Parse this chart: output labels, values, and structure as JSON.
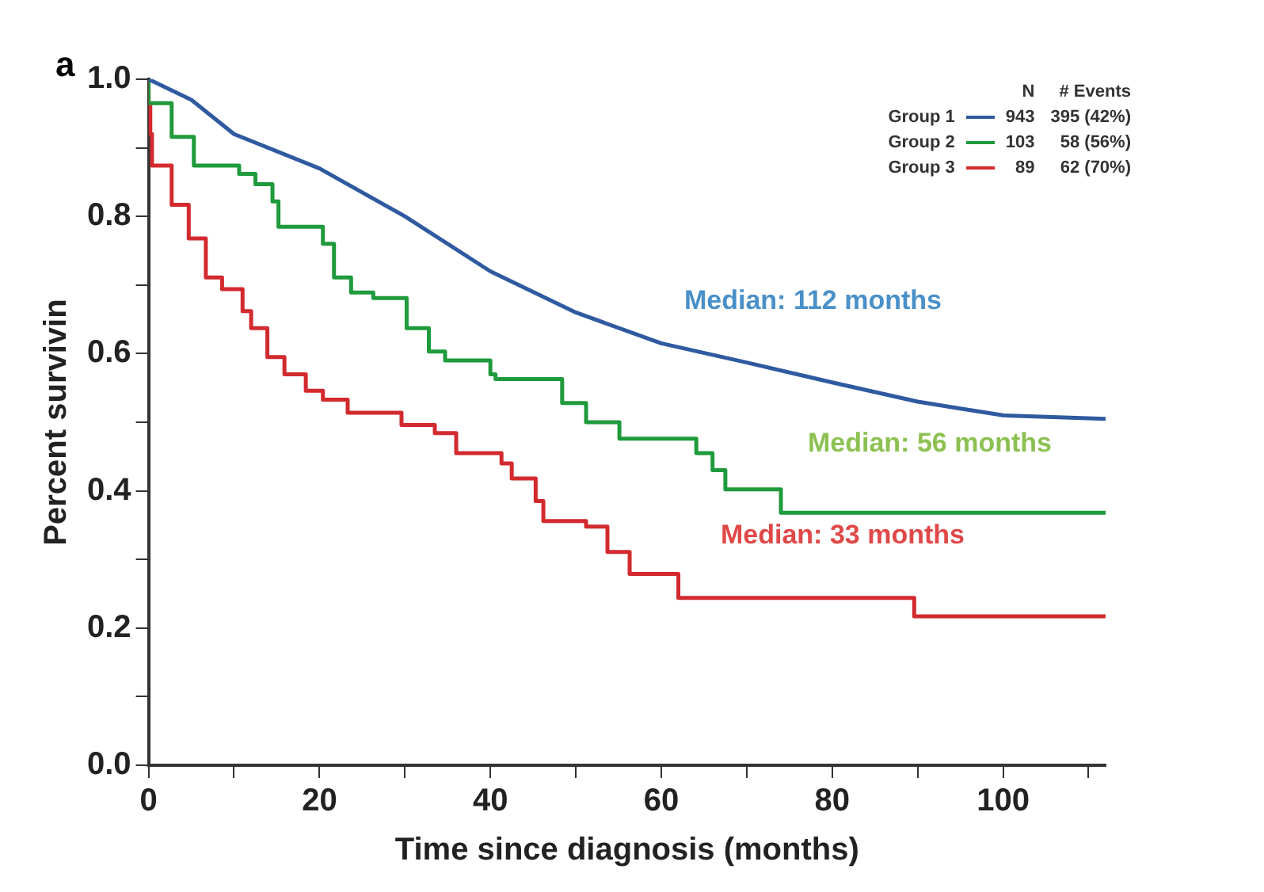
{
  "chart_data": {
    "type": "step",
    "xlabel": "Time since diagnosis (months)",
    "ylabel": "Percent survivin",
    "xlim": [
      0,
      112
    ],
    "xticks": [
      0,
      {
        "value": 10,
        "label": null
      },
      20,
      {
        "value": 30,
        "label": null
      },
      40,
      {
        "value": 50,
        "label": null
      },
      60,
      {
        "value": 70,
        "label": null
      },
      80,
      {
        "value": 90,
        "label": null
      },
      100,
      {
        "value": 110,
        "label": null
      }
    ],
    "ylim": [
      0,
      1
    ],
    "yticks": [
      {
        "value": 0,
        "label": "0.0"
      },
      {
        "value": 0.1,
        "label": null
      },
      {
        "value": 0.2,
        "label": "0.2"
      },
      {
        "value": 0.3,
        "label": null
      },
      {
        "value": 0.4,
        "label": "0.4"
      },
      {
        "value": 0.5,
        "label": null
      },
      {
        "value": 0.6,
        "label": "0.6"
      },
      {
        "value": 0.7,
        "label": null
      },
      {
        "value": 0.8,
        "label": "0.8"
      },
      {
        "value": 0.9,
        "label": null
      },
      {
        "value": 1,
        "label": "1.0"
      }
    ],
    "grid": false,
    "legend": "top right",
    "series": [
      {
        "name": "Group 1",
        "type": "line",
        "color": "#2f5aa0",
        "x": [
          0,
          5,
          10,
          20,
          30,
          40,
          50,
          60,
          70,
          80,
          90,
          95,
          100,
          112
        ],
        "values": [
          1.0,
          0.97,
          0.92,
          0.87,
          0.8,
          0.72,
          0.66,
          0.615,
          0.587,
          0.558,
          0.53,
          0.52,
          0.51,
          0.505
        ]
      },
      {
        "name": "Group 2",
        "color": "#1f9a3c",
        "x": [
          0,
          2.7,
          5.3,
          10.6,
          12.5,
          14.5,
          15.2,
          20.4,
          21.7,
          23.7,
          26.3,
          30.2,
          32.8,
          34.7,
          40,
          40.6,
          48.4,
          51.2,
          55.1,
          64.1,
          66,
          67.5,
          74,
          93.3,
          112
        ],
        "values": [
          1.0,
          0.965,
          0.916,
          0.874,
          0.862,
          0.847,
          0.822,
          0.785,
          0.76,
          0.711,
          0.689,
          0.681,
          0.637,
          0.603,
          0.59,
          0.57,
          0.563,
          0.528,
          0.5,
          0.476,
          0.455,
          0.43,
          0.402,
          0.368,
          0.368
        ]
      },
      {
        "name": "Group 3",
        "color": "#d22a2f",
        "x": [
          0,
          0.2,
          0.4,
          2.7,
          4.7,
          6.7,
          8.6,
          11,
          12,
          13.9,
          15.9,
          18.4,
          20.4,
          23.3,
          29.6,
          33.5,
          36,
          41.3,
          42.5,
          45.3,
          46.2,
          51.2,
          53.7,
          56.3,
          62,
          89.6,
          93.5,
          112
        ],
        "values": [
          1.0,
          0.965,
          0.92,
          0.874,
          0.817,
          0.768,
          0.711,
          0.694,
          0.662,
          0.637,
          0.595,
          0.57,
          0.546,
          0.533,
          0.514,
          0.496,
          0.484,
          0.455,
          0.44,
          0.418,
          0.385,
          0.356,
          0.348,
          0.311,
          0.279,
          0.244,
          0.217,
          0.217
        ]
      }
    ],
    "annotations": [
      "a",
      "Median: 112 months",
      "Median: 56 months",
      "Median: 33 months",
      "N",
      "# Events",
      "943",
      "395 (42%)",
      "103",
      "58 (56%)",
      "89",
      "62 (70%)"
    ]
  }
}
